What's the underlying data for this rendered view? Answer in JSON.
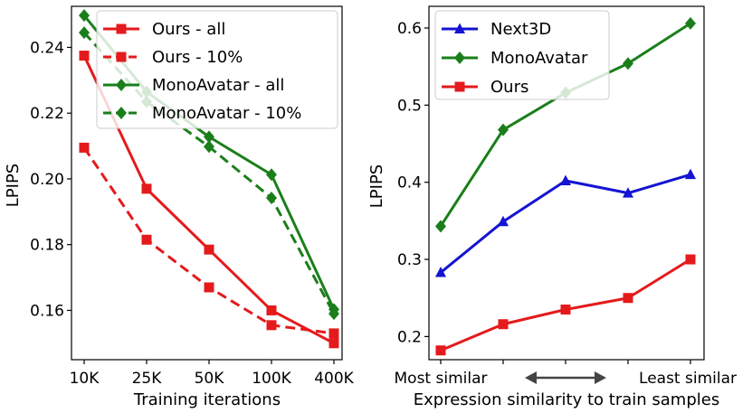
{
  "chart_data": [
    {
      "type": "line",
      "xlabel": "Training iterations",
      "ylabel": "LPIPS",
      "ylim": [
        0.145,
        0.2525
      ],
      "yticks": [
        0.16,
        0.18,
        0.2,
        0.22,
        0.24
      ],
      "ytick_labels": [
        "0.16",
        "0.18",
        "0.20",
        "0.22",
        "0.24"
      ],
      "categories": [
        "10K",
        "25K",
        "50K",
        "100K",
        "400K"
      ],
      "legend_position": "top-right",
      "series": [
        {
          "name": "Ours - all",
          "color": "#e41a1c",
          "style": "solid",
          "marker": "square",
          "values": [
            0.2375,
            0.197,
            0.1785,
            0.16,
            0.15
          ]
        },
        {
          "name": "Ours - 10%",
          "color": "#e41a1c",
          "style": "dashed",
          "marker": "square",
          "values": [
            0.2095,
            0.1815,
            0.167,
            0.1555,
            0.153
          ]
        },
        {
          "name": "MonoAvatar - all",
          "color": "#1a7f1a",
          "style": "solid",
          "marker": "diamond",
          "values": [
            0.2497,
            0.2265,
            0.2128,
            0.2013,
            0.1603
          ]
        },
        {
          "name": "MonoAvatar - 10%",
          "color": "#1a7f1a",
          "style": "dashed",
          "marker": "diamond",
          "values": [
            0.2445,
            0.2235,
            0.2098,
            0.1942,
            0.159
          ]
        }
      ]
    },
    {
      "type": "line",
      "xlabel": "Expression similarity to train samples",
      "ylabel": "LPIPS",
      "ylim": [
        0.17,
        0.6281
      ],
      "yticks": [
        0.2,
        0.3,
        0.4,
        0.5,
        0.6
      ],
      "ytick_labels": [
        "0.2",
        "0.3",
        "0.4",
        "0.5",
        "0.6"
      ],
      "x": [
        1,
        2,
        3,
        4,
        5
      ],
      "xtick_left": "Most similar",
      "xtick_right": "Least similar",
      "legend_position": "top-left",
      "series": [
        {
          "name": "Next3D",
          "color": "#1414d2",
          "style": "solid",
          "marker": "triangle",
          "values": [
            0.283,
            0.349,
            0.402,
            0.386,
            0.41
          ]
        },
        {
          "name": "MonoAvatar",
          "color": "#1a7f1a",
          "style": "solid",
          "marker": "diamond",
          "values": [
            0.343,
            0.468,
            0.516,
            0.554,
            0.606
          ]
        },
        {
          "name": "Ours",
          "color": "#e41a1c",
          "style": "solid",
          "marker": "square",
          "values": [
            0.182,
            0.216,
            0.235,
            0.25,
            0.3
          ]
        }
      ]
    }
  ]
}
